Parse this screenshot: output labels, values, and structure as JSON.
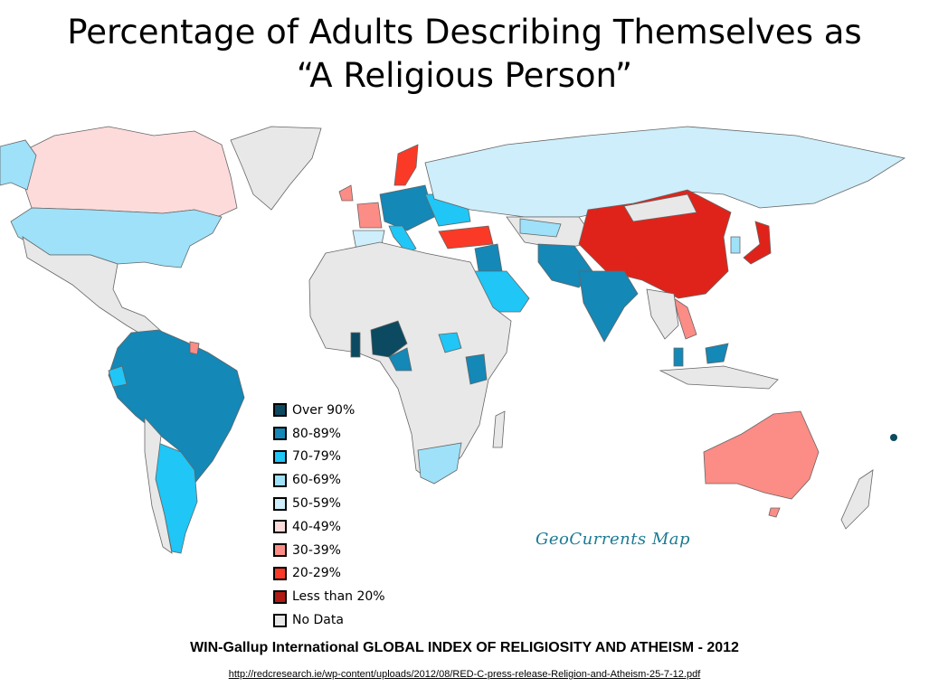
{
  "title_line1": "Percentage of Adults Describing Themselves as",
  "title_line2": "“A Religious Person”",
  "legend": [
    {
      "label": "Over 90%",
      "color": "#0b4a60"
    },
    {
      "label": "80-89%",
      "color": "#1488b6"
    },
    {
      "label": "70-79%",
      "color": "#1fc6f6"
    },
    {
      "label": "60-69%",
      "color": "#9ee1f9"
    },
    {
      "label": "50-59%",
      "color": "#cdeefa"
    },
    {
      "label": "40-49%",
      "color": "#fddbda"
    },
    {
      "label": "30-39%",
      "color": "#fc8c86"
    },
    {
      "label": "20-29%",
      "color": "#fa3a26"
    },
    {
      "label": "Less than 20%",
      "color": "#b01a12"
    },
    {
      "label": "No Data",
      "color": "#e8e8e8"
    }
  ],
  "watermark": "GeoCurrents Map",
  "source_title": "WIN-Gallup International GLOBAL INDEX OF RELIGIOSITY AND ATHEISM - 2012",
  "source_url": "http://redcresearch.ie/wp-content/uploads/2012/08/RED-C-press-release-Religion-and-Atheism-25-7-12.pdf"
}
